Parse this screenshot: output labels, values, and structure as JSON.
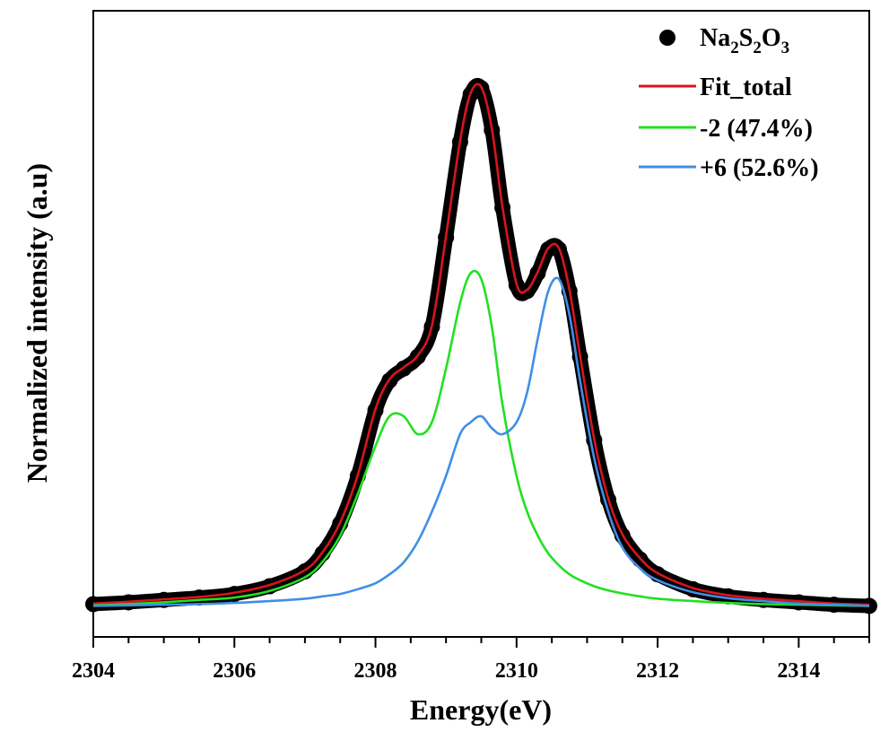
{
  "chart_data": {
    "type": "line",
    "title": "",
    "xlabel": "Energy(eV)",
    "ylabel": "Normalized intensity (a.u)",
    "xlim": [
      2304,
      2315
    ],
    "ylim": [
      -0.05,
      1.0
    ],
    "xticks": [
      2304,
      2306,
      2308,
      2310,
      2312,
      2314
    ],
    "xticks_minor_step": 0.5,
    "y_ticks_shown": false,
    "grid": false,
    "legend_position": "top-right",
    "series": [
      {
        "name": "Na2S2O3",
        "legend_main": "Na",
        "legend_parts": [
          "Na",
          "2",
          "S",
          "2",
          "O",
          "3"
        ],
        "style": "scatter",
        "color": "#000000",
        "x": [
          2304.0,
          2304.5,
          2305.0,
          2305.5,
          2306.0,
          2306.5,
          2307.0,
          2307.25,
          2307.5,
          2307.75,
          2308.0,
          2308.2,
          2308.4,
          2308.6,
          2308.8,
          2309.0,
          2309.2,
          2309.35,
          2309.5,
          2309.65,
          2309.8,
          2310.0,
          2310.15,
          2310.3,
          2310.45,
          2310.6,
          2310.75,
          2310.9,
          2311.1,
          2311.3,
          2311.5,
          2311.75,
          2312.0,
          2312.5,
          2313.0,
          2313.5,
          2314.0,
          2314.5,
          2315.0
        ],
        "y": [
          0.005,
          0.008,
          0.012,
          0.016,
          0.022,
          0.035,
          0.06,
          0.09,
          0.14,
          0.22,
          0.33,
          0.38,
          0.4,
          0.42,
          0.47,
          0.62,
          0.78,
          0.86,
          0.87,
          0.8,
          0.67,
          0.54,
          0.53,
          0.56,
          0.6,
          0.6,
          0.53,
          0.42,
          0.28,
          0.18,
          0.12,
          0.08,
          0.055,
          0.03,
          0.018,
          0.012,
          0.008,
          0.004,
          0.002
        ]
      },
      {
        "name": "Fit_total",
        "style": "line",
        "color": "#d9141e",
        "x": [
          2304.0,
          2304.5,
          2305.0,
          2305.5,
          2306.0,
          2306.5,
          2307.0,
          2307.25,
          2307.5,
          2307.75,
          2308.0,
          2308.2,
          2308.4,
          2308.6,
          2308.8,
          2309.0,
          2309.2,
          2309.35,
          2309.5,
          2309.65,
          2309.8,
          2310.0,
          2310.15,
          2310.3,
          2310.45,
          2310.6,
          2310.75,
          2310.9,
          2311.1,
          2311.3,
          2311.5,
          2311.75,
          2312.0,
          2312.5,
          2313.0,
          2313.5,
          2314.0,
          2314.5,
          2315.0
        ],
        "y": [
          0.006,
          0.009,
          0.013,
          0.017,
          0.024,
          0.037,
          0.062,
          0.092,
          0.142,
          0.222,
          0.332,
          0.382,
          0.402,
          0.422,
          0.472,
          0.622,
          0.782,
          0.862,
          0.872,
          0.802,
          0.672,
          0.542,
          0.532,
          0.562,
          0.602,
          0.602,
          0.532,
          0.422,
          0.282,
          0.182,
          0.122,
          0.082,
          0.057,
          0.032,
          0.02,
          0.014,
          0.01,
          0.006,
          0.004
        ]
      },
      {
        "name": "-2 (47.4%)",
        "style": "line",
        "color": "#22e022",
        "x": [
          2304.0,
          2304.5,
          2305.0,
          2305.5,
          2306.0,
          2306.5,
          2307.0,
          2307.25,
          2307.5,
          2307.75,
          2308.0,
          2308.2,
          2308.4,
          2308.6,
          2308.8,
          2309.0,
          2309.2,
          2309.35,
          2309.5,
          2309.65,
          2309.8,
          2310.0,
          2310.15,
          2310.3,
          2310.45,
          2310.6,
          2310.75,
          2310.9,
          2311.1,
          2311.3,
          2311.5,
          2311.75,
          2312.0,
          2312.5,
          2313.0,
          2313.5,
          2314.0,
          2314.5,
          2315.0
        ],
        "y": [
          0.003,
          0.005,
          0.008,
          0.012,
          0.016,
          0.027,
          0.05,
          0.076,
          0.12,
          0.19,
          0.27,
          0.32,
          0.32,
          0.29,
          0.31,
          0.4,
          0.51,
          0.56,
          0.55,
          0.47,
          0.34,
          0.22,
          0.16,
          0.12,
          0.09,
          0.07,
          0.055,
          0.045,
          0.035,
          0.028,
          0.023,
          0.018,
          0.014,
          0.01,
          0.007,
          0.005,
          0.004,
          0.003,
          0.002
        ]
      },
      {
        "name": "+6 (52.6%)",
        "style": "line",
        "color": "#3f8fe6",
        "x": [
          2304.0,
          2304.5,
          2305.0,
          2305.5,
          2306.0,
          2306.5,
          2307.0,
          2307.25,
          2307.5,
          2307.75,
          2308.0,
          2308.2,
          2308.4,
          2308.6,
          2308.8,
          2309.0,
          2309.2,
          2309.35,
          2309.5,
          2309.65,
          2309.8,
          2310.0,
          2310.15,
          2310.3,
          2310.45,
          2310.6,
          2310.75,
          2310.9,
          2311.1,
          2311.3,
          2311.5,
          2311.75,
          2312.0,
          2312.5,
          2313.0,
          2313.5,
          2314.0,
          2314.5,
          2315.0
        ],
        "y": [
          0.002,
          0.003,
          0.004,
          0.005,
          0.007,
          0.01,
          0.014,
          0.018,
          0.022,
          0.03,
          0.04,
          0.055,
          0.075,
          0.11,
          0.16,
          0.22,
          0.29,
          0.31,
          0.32,
          0.3,
          0.29,
          0.31,
          0.36,
          0.45,
          0.53,
          0.55,
          0.49,
          0.38,
          0.25,
          0.16,
          0.1,
          0.065,
          0.045,
          0.025,
          0.015,
          0.01,
          0.006,
          0.004,
          0.002
        ]
      }
    ]
  }
}
